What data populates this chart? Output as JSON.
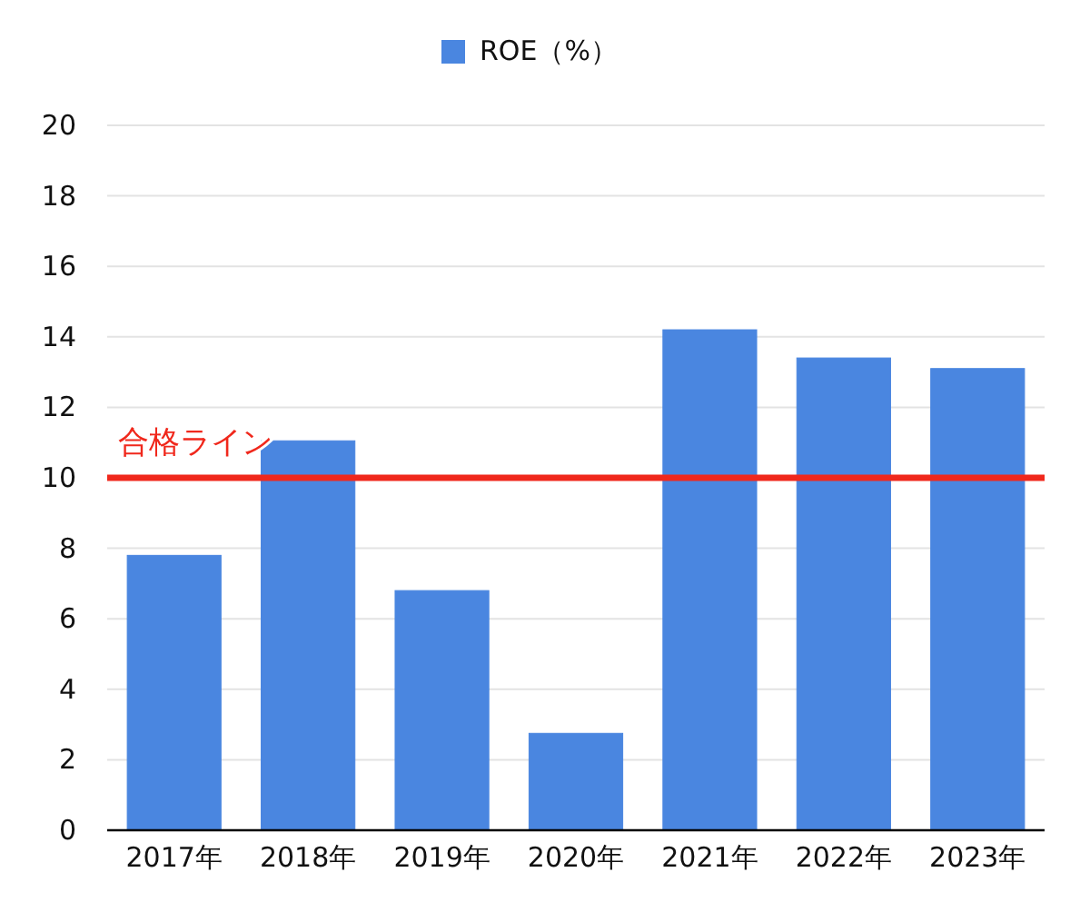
{
  "chart_data": {
    "type": "bar",
    "categories": [
      "2017年",
      "2018年",
      "2019年",
      "2020年",
      "2021年",
      "2022年",
      "2023年"
    ],
    "series": [
      {
        "name": "ROE（%）",
        "color": "#4a86e0",
        "values": [
          7.8,
          11.05,
          6.8,
          2.75,
          14.2,
          13.4,
          13.1
        ]
      }
    ],
    "ylim": [
      0,
      20
    ],
    "yticks": [
      0,
      2,
      4,
      6,
      8,
      10,
      12,
      14,
      16,
      18,
      20
    ],
    "grid": "y",
    "legend": "top",
    "ref_lines": [
      {
        "axis": "y",
        "value": 10,
        "label": "合格ライン",
        "color": "#f0281c"
      }
    ]
  }
}
